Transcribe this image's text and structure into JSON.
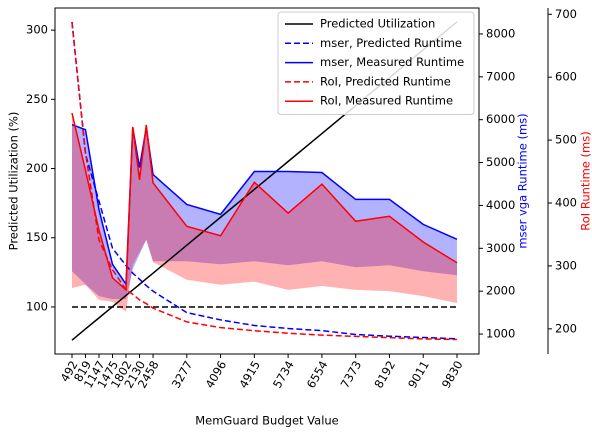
{
  "chart_data": {
    "type": "line",
    "xlabel": "MemGuard Budget Value",
    "ylabel": "Predicted Utilization (%)",
    "y2label": "mser vga Runtime (ms)",
    "y2color": "#0000ff",
    "y3label": "RoI Runtime (ms)",
    "y3color": "#ff0000",
    "x": [
      492,
      819,
      1147,
      1475,
      1802,
      1966,
      2130,
      2294,
      2458,
      3277,
      4096,
      4915,
      5734,
      6554,
      7373,
      8192,
      9011,
      9830
    ],
    "xlim": [
      80,
      10364
    ],
    "xticks": [
      492,
      819,
      1147,
      1475,
      1802,
      2130,
      2458,
      3277,
      4096,
      4915,
      5734,
      6554,
      7373,
      8192,
      9011,
      9830
    ],
    "ylim": [
      66,
      316
    ],
    "yticks": [
      100,
      150,
      200,
      250,
      300
    ],
    "y2lim": [
      535,
      8605
    ],
    "y2ticks": [
      1000,
      2000,
      3000,
      4000,
      5000,
      6000,
      7000,
      8000
    ],
    "y3lim": [
      160,
      710
    ],
    "y3ticks": [
      200,
      300,
      400,
      500,
      600,
      700
    ],
    "hline": 100,
    "hline_color": "#000000",
    "legend": "upper right",
    "series": [
      {
        "name": "Predicted Utilization",
        "color": "#000000",
        "axis": "y",
        "linestyle": "solid",
        "values": [
          76,
          84.1,
          92.1,
          100.2,
          108.3,
          112.3,
          116.3,
          120.4,
          124.4,
          144.6,
          164.8,
          184.9,
          205.1,
          225.3,
          245.5,
          265.7,
          285.8,
          306
        ]
      },
      {
        "name": "mser, Predicted Runtime",
        "color": "#0000ff",
        "axis": "y2",
        "linestyle": "dashed",
        "values": [
          8280,
          5200,
          4100,
          3000,
          2600,
          2420,
          2280,
          2130,
          2000,
          1500,
          1330,
          1200,
          1130,
          1080,
          990,
          950,
          920,
          890
        ]
      },
      {
        "name": "mser, Measured Runtime",
        "color": "#0000ff",
        "axis": "y2",
        "linestyle": "solid",
        "fill_color": "rgba(0,0,255,0.3)",
        "values": [
          5884,
          5767,
          3907,
          2628,
          2163,
          5814,
          4884,
          5814,
          4721,
          4023,
          3791,
          4791,
          4791,
          4767,
          4140,
          4140,
          3558,
          3209
        ],
        "fill_lower": [
          2465,
          2163,
          1884,
          1814,
          1814,
          2512,
          2860,
          3209,
          2698,
          2698,
          2628,
          2698,
          2605,
          2698,
          2558,
          2605,
          2465,
          2372
        ]
      },
      {
        "name": "RoI, Predicted Runtime",
        "color": "#ff0000",
        "axis": "y3",
        "linestyle": "dashed",
        "values": [
          687,
          480,
          341,
          294,
          262,
          255,
          246,
          240,
          233,
          211,
          202,
          197,
          193,
          190,
          188,
          186,
          184,
          183
        ]
      },
      {
        "name": "RoI, Measured Runtime",
        "color": "#ff0000",
        "axis": "y3",
        "linestyle": "solid",
        "fill_color": "rgba(255,0,0,0.3)",
        "values": [
          543,
          452,
          357,
          281,
          262,
          521,
          437,
          524,
          432,
          363,
          348,
          433,
          384,
          430,
          371,
          379,
          338,
          305
        ],
        "fill_lower": [
          265,
          270,
          246,
          243,
          227,
          302,
          322,
          341,
          306,
          278,
          270,
          275,
          262,
          268,
          262,
          260,
          252,
          241
        ]
      }
    ]
  }
}
